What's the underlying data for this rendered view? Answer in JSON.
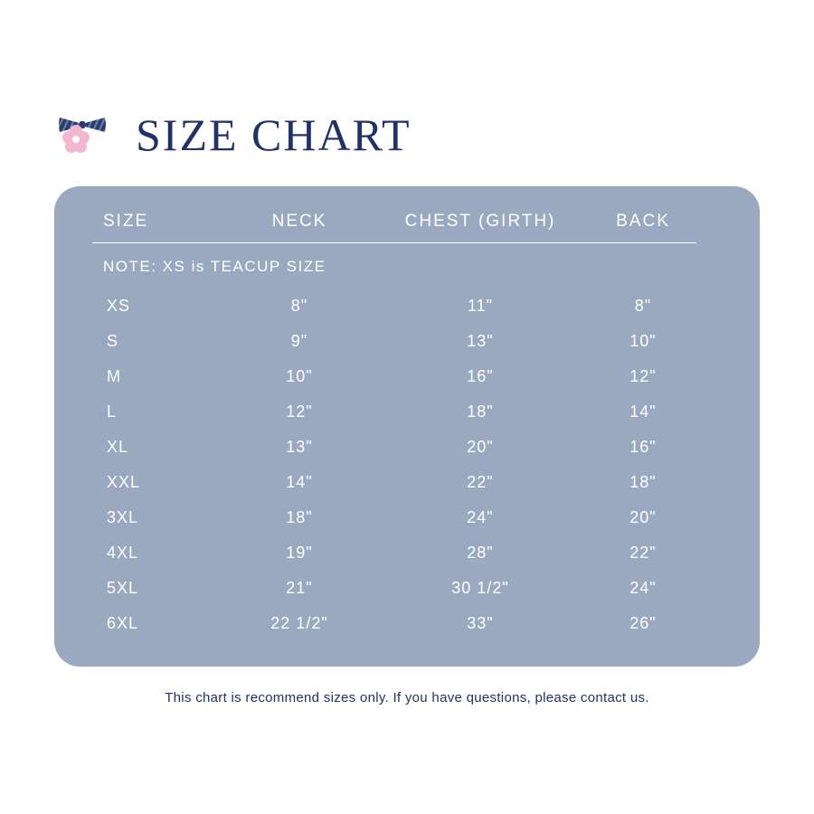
{
  "colors": {
    "title": "#203267",
    "card_bg": "#9aa9bf",
    "header_text": "#ffffff",
    "cell_text": "#ffffff",
    "rule": "#ffffff",
    "footer_text": "#203267",
    "bowtie": "#2a3d6e",
    "bowtie_stripe": "#6c7ea8",
    "flower_petal": "#f3b6d1",
    "flower_center": "#ffffff"
  },
  "title": "SIZE CHART",
  "table": {
    "columns": [
      "SIZE",
      "NECK",
      "CHEST (GIRTH)",
      "BACK"
    ],
    "note": "NOTE:  XS is TEACUP SIZE",
    "rows": [
      {
        "size": "XS",
        "neck": "8\"",
        "chest": "11\"",
        "back": "8\""
      },
      {
        "size": "S",
        "neck": "9\"",
        "chest": "13\"",
        "back": "10\""
      },
      {
        "size": "M",
        "neck": "10\"",
        "chest": "16\"",
        "back": "12\""
      },
      {
        "size": "L",
        "neck": "12\"",
        "chest": "18\"",
        "back": "14\""
      },
      {
        "size": "XL",
        "neck": "13\"",
        "chest": "20\"",
        "back": "16\""
      },
      {
        "size": "XXL",
        "neck": "14\"",
        "chest": "22\"",
        "back": "18\""
      },
      {
        "size": "3XL",
        "neck": "18\"",
        "chest": "24\"",
        "back": "20\""
      },
      {
        "size": "4XL",
        "neck": "19\"",
        "chest": "28\"",
        "back": "22\""
      },
      {
        "size": "5XL",
        "neck": "21\"",
        "chest": "30 1/2\"",
        "back": "24\""
      },
      {
        "size": "6XL",
        "neck": "22 1/2\"",
        "chest": "33\"",
        "back": "26\""
      }
    ]
  },
  "footer": "This chart is recommend sizes only.  If you have questions, please contact us."
}
